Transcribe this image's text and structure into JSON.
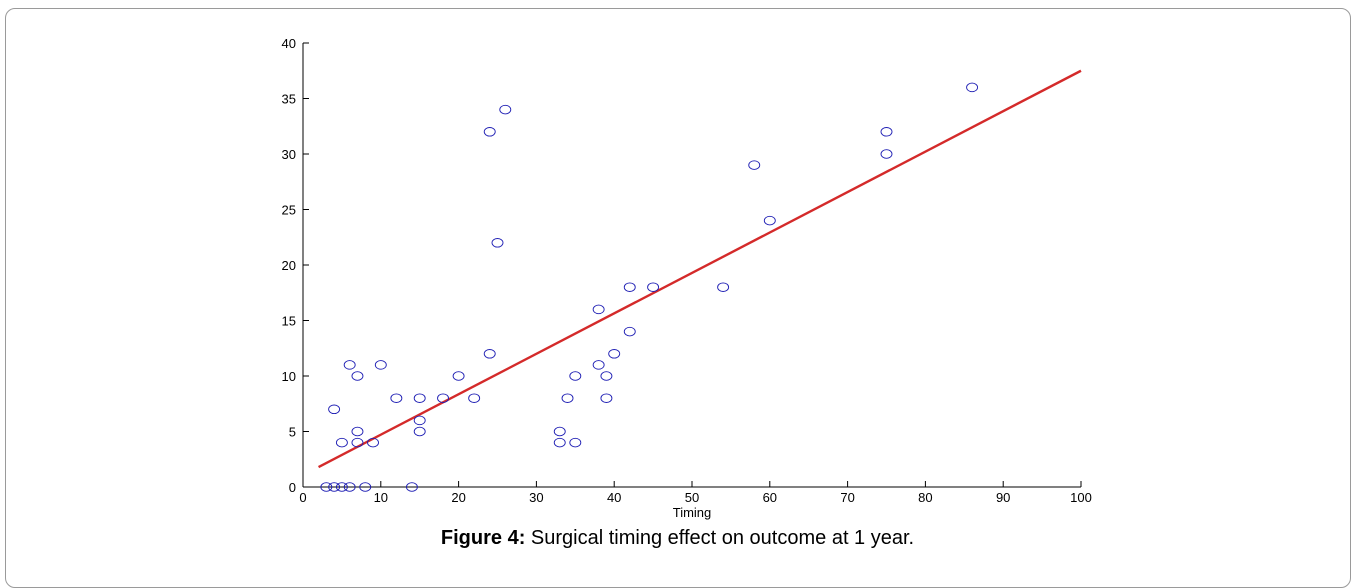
{
  "figure": {
    "caption_label": "Figure 4:",
    "caption_text": " Surgical timing effect on outcome at 1 year."
  },
  "colors": {
    "marker": "#1f1fb4",
    "fit_line": "#d42a2a",
    "axis": "#000000"
  },
  "chart_data": {
    "type": "scatter",
    "title": "",
    "xlabel": "Timing",
    "ylabel": "",
    "xlim": [
      0,
      100
    ],
    "ylim": [
      0,
      40
    ],
    "x_ticks": [
      0,
      10,
      20,
      30,
      40,
      50,
      60,
      70,
      80,
      90,
      100
    ],
    "y_ticks": [
      0,
      5,
      10,
      15,
      20,
      25,
      30,
      35,
      40
    ],
    "grid": false,
    "legend": "none",
    "marker": "open-circle",
    "points": [
      {
        "x": 3,
        "y": 0
      },
      {
        "x": 4,
        "y": 0
      },
      {
        "x": 5,
        "y": 0
      },
      {
        "x": 6,
        "y": 0
      },
      {
        "x": 8,
        "y": 0
      },
      {
        "x": 14,
        "y": 0
      },
      {
        "x": 4,
        "y": 7
      },
      {
        "x": 5,
        "y": 4
      },
      {
        "x": 6,
        "y": 11
      },
      {
        "x": 7,
        "y": 10
      },
      {
        "x": 7,
        "y": 5
      },
      {
        "x": 7,
        "y": 4
      },
      {
        "x": 9,
        "y": 4
      },
      {
        "x": 10,
        "y": 11
      },
      {
        "x": 12,
        "y": 8
      },
      {
        "x": 15,
        "y": 8
      },
      {
        "x": 15,
        "y": 6
      },
      {
        "x": 15,
        "y": 5
      },
      {
        "x": 18,
        "y": 8
      },
      {
        "x": 20,
        "y": 10
      },
      {
        "x": 22,
        "y": 8
      },
      {
        "x": 24,
        "y": 32
      },
      {
        "x": 24,
        "y": 12
      },
      {
        "x": 25,
        "y": 22
      },
      {
        "x": 26,
        "y": 34
      },
      {
        "x": 33,
        "y": 5
      },
      {
        "x": 33,
        "y": 4
      },
      {
        "x": 34,
        "y": 8
      },
      {
        "x": 35,
        "y": 10
      },
      {
        "x": 35,
        "y": 4
      },
      {
        "x": 38,
        "y": 16
      },
      {
        "x": 38,
        "y": 11
      },
      {
        "x": 39,
        "y": 10
      },
      {
        "x": 39,
        "y": 8
      },
      {
        "x": 40,
        "y": 12
      },
      {
        "x": 42,
        "y": 18
      },
      {
        "x": 42,
        "y": 14
      },
      {
        "x": 45,
        "y": 18
      },
      {
        "x": 54,
        "y": 18
      },
      {
        "x": 58,
        "y": 29
      },
      {
        "x": 60,
        "y": 24
      },
      {
        "x": 75,
        "y": 32
      },
      {
        "x": 75,
        "y": 30
      },
      {
        "x": 86,
        "y": 36
      }
    ],
    "fit_line": {
      "x": [
        2,
        100
      ],
      "y": [
        1.8,
        37.5
      ]
    }
  }
}
